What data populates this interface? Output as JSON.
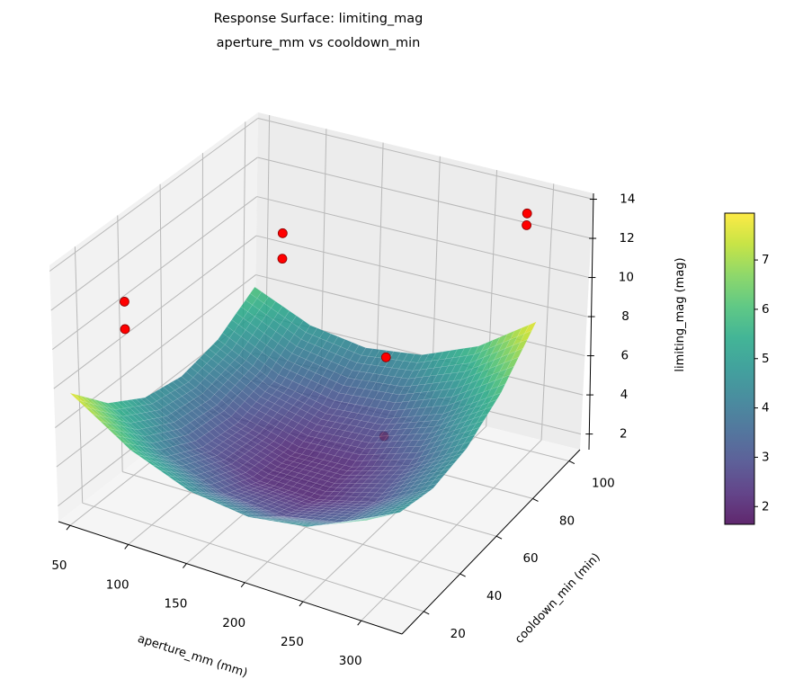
{
  "chart_data": {
    "type": "surface3d",
    "title": "Response Surface: limiting_mag",
    "subtitle": "aperture_mm vs cooldown_min",
    "xlabel": "aperture_mm (mm)",
    "ylabel": "cooldown_min (min)",
    "zlabel": "limiting_mag (mag)",
    "colorbar_label": "limiting_mag (mag)",
    "colormap": "viridis",
    "xlim": [
      40,
      335
    ],
    "ylim": [
      8,
      106
    ],
    "zlim": [
      1.2,
      14.3
    ],
    "clim": [
      1.64,
      7.95
    ],
    "xticks": [
      "50",
      "100",
      "150",
      "200",
      "250",
      "300"
    ],
    "yticks": [
      "20",
      "40",
      "60",
      "80",
      "100"
    ],
    "zticks": [
      "2",
      "4",
      "6",
      "8",
      "10",
      "12",
      "14"
    ],
    "colorbar_ticks": [
      "2",
      "3",
      "4",
      "5",
      "6",
      "7"
    ],
    "grid": true,
    "surface": {
      "x": [
        50,
        100,
        150,
        200,
        250,
        300
      ],
      "y": [
        10,
        28,
        46,
        64,
        82,
        100
      ],
      "z": [
        [
          7.8,
          5.84,
          4.68,
          4.32,
          4.76,
          6.0
        ],
        [
          5.84,
          4.02,
          3.01,
          2.79,
          3.38,
          4.76
        ],
        [
          4.68,
          3.01,
          2.14,
          2.06,
          2.79,
          4.32
        ],
        [
          4.32,
          2.79,
          2.06,
          2.14,
          3.01,
          4.68
        ],
        [
          4.76,
          3.38,
          2.79,
          3.01,
          4.02,
          5.84
        ],
        [
          6.0,
          4.76,
          4.32,
          4.68,
          5.84,
          7.8
        ]
      ],
      "alpha": 0.85
    },
    "scatter": {
      "color": "#ff0000",
      "edgecolor": "#8b0000",
      "points": [
        {
          "x": 66,
          "y": 28,
          "z": 11.3
        },
        {
          "x": 66,
          "y": 28,
          "z": 9.9
        },
        {
          "x": 99,
          "y": 86,
          "z": 10.6
        },
        {
          "x": 99,
          "y": 86,
          "z": 9.3
        },
        {
          "x": 294,
          "y": 96,
          "z": 13.6
        },
        {
          "x": 294,
          "y": 96,
          "z": 13.0
        },
        {
          "x": 223,
          "y": 67,
          "z": 7.8
        },
        {
          "x": 223,
          "y": 67,
          "z": 3.8
        }
      ]
    }
  }
}
